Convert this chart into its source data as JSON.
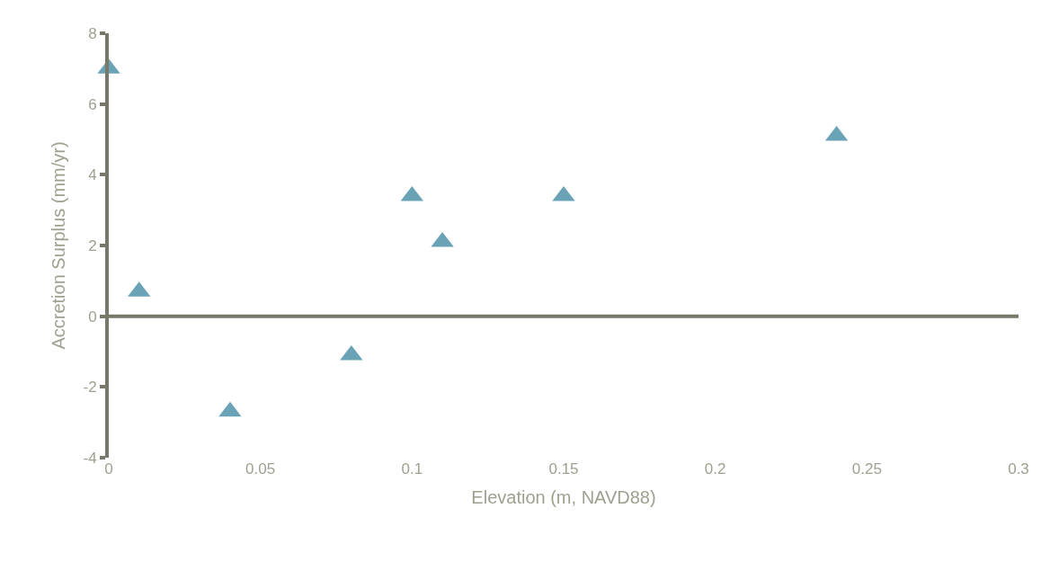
{
  "chart_data": {
    "type": "scatter",
    "xlabel": "Elevation (m, NAVD88)",
    "ylabel": "Accretion Surplus (mm/yr)",
    "x": [
      0,
      0.01,
      0.04,
      0.08,
      0.1,
      0.11,
      0.15,
      0.24
    ],
    "series": [
      {
        "color": "#6aa3b5",
        "values": [
          7.0,
          0.7,
          -2.7,
          -1.1,
          3.4,
          2.1,
          3.4,
          5.1
        ]
      }
    ],
    "marker": "triangle",
    "xlim": [
      0,
      0.3
    ],
    "xticks": [
      0,
      0.05,
      0.1,
      0.15,
      0.2,
      0.25,
      0.3
    ],
    "ylim": [
      -4,
      8
    ],
    "yticks": [
      -4,
      -2,
      0,
      2,
      4,
      6,
      8
    ],
    "ref_lines": [
      {
        "axis": "y",
        "value": 0,
        "color": "#77776a"
      }
    ],
    "grid": false,
    "legend": false
  }
}
